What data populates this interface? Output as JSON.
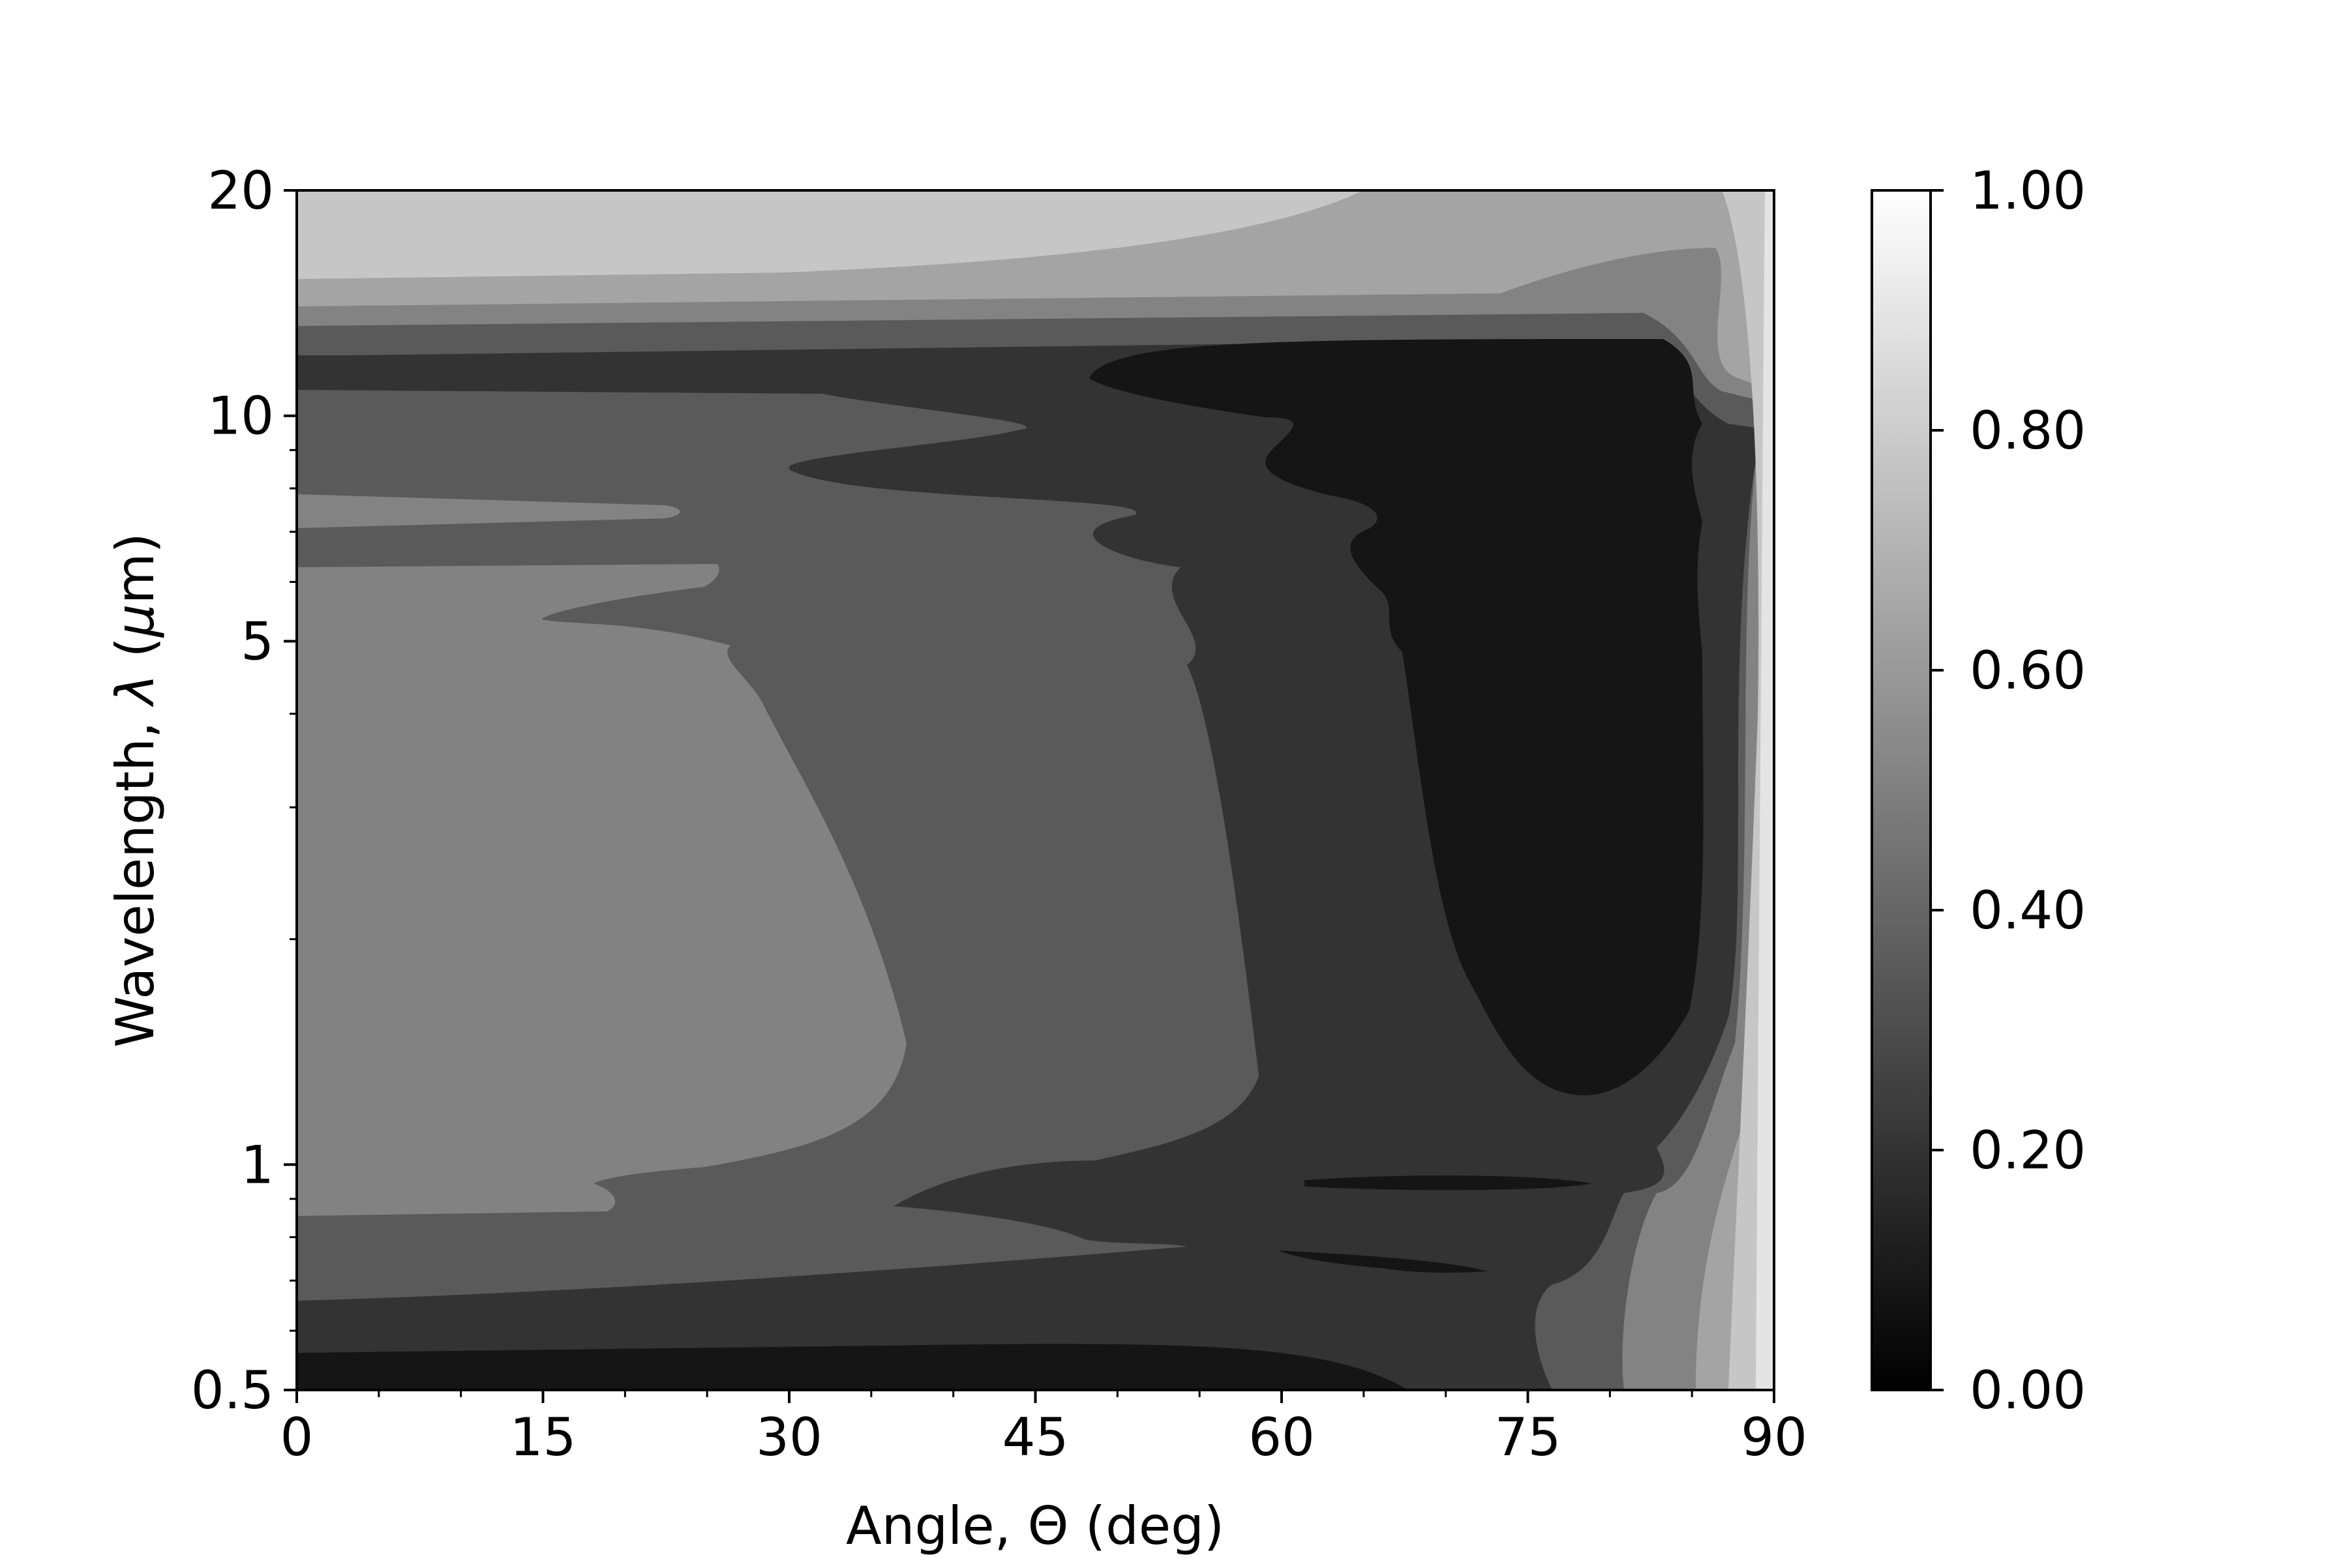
{
  "chart_data": {
    "type": "contour",
    "xlabel": "Angle, Θ (deg)",
    "ylabel_parts": [
      "Wavelength, ",
      "λ",
      " (",
      "μ",
      "m)"
    ],
    "x_ticks": [
      "0",
      "15",
      "30",
      "45",
      "60",
      "75",
      "90"
    ],
    "x_tick_values": [
      0,
      15,
      30,
      45,
      60,
      75,
      90
    ],
    "xlim": [
      0,
      90
    ],
    "y_ticks": [
      "0.5",
      "1",
      "5",
      "10",
      "20"
    ],
    "y_tick_values": [
      0.5,
      1,
      5,
      10,
      20
    ],
    "ylim": [
      0.5,
      20
    ],
    "y_scale": "log",
    "colorbar": {
      "ticks": [
        "0.00",
        "0.20",
        "0.40",
        "0.60",
        "0.80",
        "1.00"
      ],
      "tick_values": [
        0,
        0.2,
        0.4,
        0.6,
        0.8,
        1.0
      ],
      "range": [
        0,
        1
      ],
      "colormap": "gray"
    },
    "contour_levels": [
      0,
      0.1,
      0.2,
      0.3,
      0.4,
      0.5,
      0.6,
      0.7,
      0.8,
      0.9,
      1.0
    ],
    "level_colors": [
      "#151515",
      "#2e2e2e",
      "#4a4a4a",
      "#5c5c5c",
      "#6f6f6f",
      "#828282",
      "#979797",
      "#adadad",
      "#c6c6c6",
      "#e4e4e4"
    ]
  }
}
